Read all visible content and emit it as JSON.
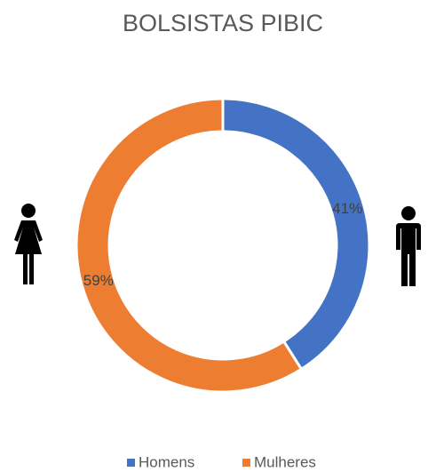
{
  "chart_data": {
    "type": "donut",
    "title": "BOLSISTAS PIBIC",
    "categories": [
      "Homens",
      "Mulheres"
    ],
    "values": [
      41,
      59
    ],
    "value_labels": [
      "41%",
      "59%"
    ],
    "colors": [
      "#4472c4",
      "#ed7d31"
    ]
  }
}
